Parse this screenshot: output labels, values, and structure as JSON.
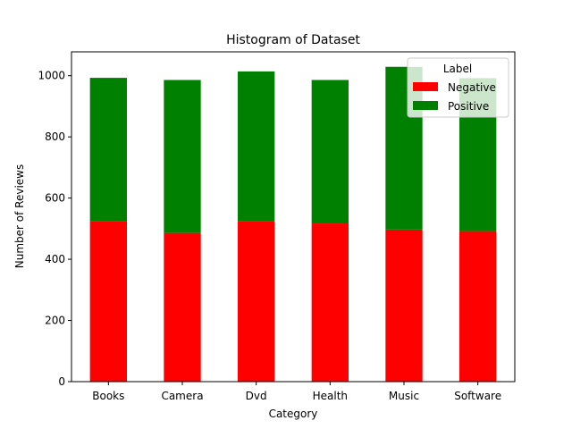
{
  "chart_data": {
    "type": "bar",
    "stacked": true,
    "title": "Histogram of Dataset",
    "xlabel": "Category",
    "ylabel": "Number of Reviews",
    "categories": [
      "Books",
      "Camera",
      "Dvd",
      "Health",
      "Music",
      "Software"
    ],
    "series": [
      {
        "name": "Negative",
        "color": "#ff0000",
        "values": [
          524,
          486,
          524,
          517,
          497,
          492
        ]
      },
      {
        "name": "Positive",
        "color": "#008000",
        "values": [
          469,
          500,
          490,
          469,
          532,
          500
        ]
      }
    ],
    "ylim": [
      0,
      1078
    ],
    "yticks": [
      0,
      200,
      400,
      600,
      800,
      1000
    ],
    "grid": false,
    "legend": {
      "title": "Label",
      "placement": "top-right"
    }
  }
}
